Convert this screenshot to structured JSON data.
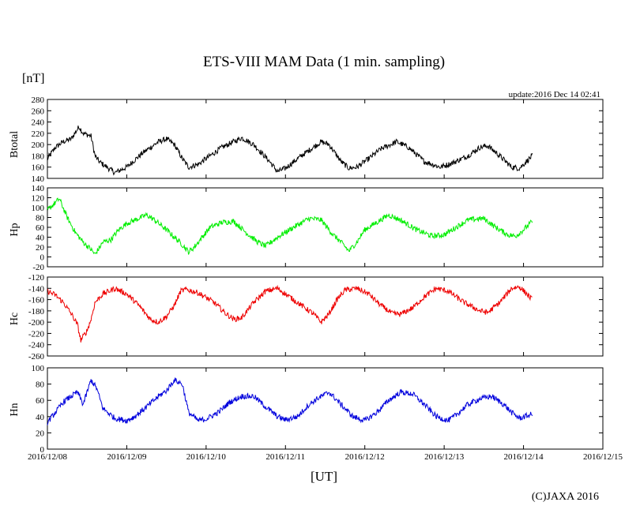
{
  "chart_data": {
    "type": "line",
    "title": "ETS-VIII MAM Data (1 min. sampling)",
    "unit_label": "[nT]",
    "update": "update:2016 Dec 14 02:41",
    "xlabel": "[UT]",
    "credit": "(C)JAXA 2016",
    "x_ticks": [
      "2016/12/08",
      "2016/12/09",
      "2016/12/10",
      "2016/12/11",
      "2016/12/12",
      "2016/12/13",
      "2016/12/14",
      "2016/12/15"
    ],
    "x_range_days": [
      0,
      7
    ],
    "data_end_day": 6.11,
    "panels": [
      {
        "id": "btotal",
        "label": "Btotal",
        "color": "#000000",
        "ylim": [
          140,
          280
        ],
        "yticks": [
          "140",
          "160",
          "180",
          "200",
          "220",
          "240",
          "260",
          "280"
        ],
        "points": [
          [
            0,
            175
          ],
          [
            0.1,
            195
          ],
          [
            0.2,
            205
          ],
          [
            0.3,
            210
          ],
          [
            0.4,
            232
          ],
          [
            0.45,
            220
          ],
          [
            0.55,
            215
          ],
          [
            0.6,
            180
          ],
          [
            0.65,
            170
          ],
          [
            0.75,
            160
          ],
          [
            0.85,
            150
          ],
          [
            1.0,
            160
          ],
          [
            1.2,
            185
          ],
          [
            1.4,
            205
          ],
          [
            1.5,
            210
          ],
          [
            1.6,
            200
          ],
          [
            1.7,
            175
          ],
          [
            1.78,
            160
          ],
          [
            1.9,
            165
          ],
          [
            2.0,
            175
          ],
          [
            2.2,
            195
          ],
          [
            2.45,
            212
          ],
          [
            2.6,
            200
          ],
          [
            2.8,
            170
          ],
          [
            2.9,
            152
          ],
          [
            3.0,
            158
          ],
          [
            3.2,
            180
          ],
          [
            3.45,
            205
          ],
          [
            3.55,
            200
          ],
          [
            3.7,
            170
          ],
          [
            3.8,
            158
          ],
          [
            3.9,
            160
          ],
          [
            4.05,
            175
          ],
          [
            4.2,
            192
          ],
          [
            4.4,
            205
          ],
          [
            4.55,
            195
          ],
          [
            4.75,
            170
          ],
          [
            4.95,
            160
          ],
          [
            5.1,
            167
          ],
          [
            5.3,
            180
          ],
          [
            5.45,
            195
          ],
          [
            5.55,
            198
          ],
          [
            5.7,
            180
          ],
          [
            5.85,
            160
          ],
          [
            5.95,
            158
          ],
          [
            6.11,
            180
          ]
        ]
      },
      {
        "id": "hp",
        "label": "Hp",
        "color": "#00ee00",
        "ylim": [
          -20,
          140
        ],
        "yticks": [
          "-20",
          "0",
          "20",
          "40",
          "60",
          "80",
          "100",
          "120",
          "140"
        ],
        "points": [
          [
            0,
            95
          ],
          [
            0.1,
            110
          ],
          [
            0.15,
            118
          ],
          [
            0.25,
            80
          ],
          [
            0.35,
            50
          ],
          [
            0.45,
            30
          ],
          [
            0.55,
            15
          ],
          [
            0.6,
            5
          ],
          [
            0.7,
            30
          ],
          [
            0.8,
            35
          ],
          [
            0.9,
            55
          ],
          [
            1.0,
            68
          ],
          [
            1.15,
            78
          ],
          [
            1.25,
            85
          ],
          [
            1.35,
            75
          ],
          [
            1.5,
            55
          ],
          [
            1.6,
            40
          ],
          [
            1.7,
            25
          ],
          [
            1.78,
            10
          ],
          [
            1.85,
            20
          ],
          [
            1.95,
            40
          ],
          [
            2.05,
            60
          ],
          [
            2.2,
            70
          ],
          [
            2.35,
            72
          ],
          [
            2.5,
            50
          ],
          [
            2.65,
            30
          ],
          [
            2.75,
            22
          ],
          [
            2.9,
            40
          ],
          [
            3.1,
            60
          ],
          [
            3.3,
            78
          ],
          [
            3.45,
            75
          ],
          [
            3.6,
            45
          ],
          [
            3.7,
            30
          ],
          [
            3.8,
            12
          ],
          [
            3.9,
            30
          ],
          [
            4.0,
            55
          ],
          [
            4.2,
            75
          ],
          [
            4.3,
            85
          ],
          [
            4.45,
            75
          ],
          [
            4.65,
            55
          ],
          [
            4.85,
            42
          ],
          [
            5.0,
            45
          ],
          [
            5.15,
            60
          ],
          [
            5.3,
            75
          ],
          [
            5.5,
            78
          ],
          [
            5.65,
            60
          ],
          [
            5.8,
            45
          ],
          [
            5.9,
            42
          ],
          [
            6.0,
            55
          ],
          [
            6.11,
            72
          ]
        ]
      },
      {
        "id": "hc",
        "label": "Hc",
        "color": "#ee0000",
        "ylim": [
          -260,
          -120
        ],
        "yticks": [
          "-260",
          "-240",
          "-220",
          "-200",
          "-180",
          "-160",
          "-140",
          "-120"
        ],
        "points": [
          [
            0,
            -145
          ],
          [
            0.1,
            -152
          ],
          [
            0.2,
            -165
          ],
          [
            0.3,
            -185
          ],
          [
            0.38,
            -205
          ],
          [
            0.42,
            -232
          ],
          [
            0.5,
            -215
          ],
          [
            0.55,
            -195
          ],
          [
            0.6,
            -165
          ],
          [
            0.7,
            -150
          ],
          [
            0.85,
            -140
          ],
          [
            1.0,
            -150
          ],
          [
            1.15,
            -170
          ],
          [
            1.3,
            -195
          ],
          [
            1.4,
            -200
          ],
          [
            1.5,
            -190
          ],
          [
            1.6,
            -170
          ],
          [
            1.68,
            -145
          ],
          [
            1.75,
            -142
          ],
          [
            1.9,
            -148
          ],
          [
            2.1,
            -165
          ],
          [
            2.25,
            -185
          ],
          [
            2.35,
            -195
          ],
          [
            2.45,
            -192
          ],
          [
            2.6,
            -165
          ],
          [
            2.75,
            -145
          ],
          [
            2.9,
            -140
          ],
          [
            3.05,
            -155
          ],
          [
            3.2,
            -170
          ],
          [
            3.35,
            -185
          ],
          [
            3.45,
            -200
          ],
          [
            3.55,
            -185
          ],
          [
            3.65,
            -160
          ],
          [
            3.75,
            -143
          ],
          [
            3.9,
            -140
          ],
          [
            4.05,
            -150
          ],
          [
            4.2,
            -170
          ],
          [
            4.35,
            -185
          ],
          [
            4.45,
            -186
          ],
          [
            4.6,
            -175
          ],
          [
            4.75,
            -155
          ],
          [
            4.9,
            -140
          ],
          [
            5.05,
            -145
          ],
          [
            5.25,
            -165
          ],
          [
            5.45,
            -180
          ],
          [
            5.55,
            -183
          ],
          [
            5.7,
            -165
          ],
          [
            5.85,
            -140
          ],
          [
            5.95,
            -137
          ],
          [
            6.11,
            -160
          ]
        ]
      },
      {
        "id": "hn",
        "label": "Hn",
        "color": "#0000dd",
        "ylim": [
          0,
          100
        ],
        "yticks": [
          "0",
          "20",
          "40",
          "60",
          "80",
          "100"
        ],
        "points": [
          [
            0,
            33
          ],
          [
            0.1,
            45
          ],
          [
            0.2,
            58
          ],
          [
            0.3,
            65
          ],
          [
            0.38,
            70
          ],
          [
            0.45,
            55
          ],
          [
            0.5,
            70
          ],
          [
            0.55,
            85
          ],
          [
            0.62,
            75
          ],
          [
            0.7,
            50
          ],
          [
            0.85,
            38
          ],
          [
            1.0,
            35
          ],
          [
            1.1,
            40
          ],
          [
            1.25,
            52
          ],
          [
            1.4,
            65
          ],
          [
            1.5,
            72
          ],
          [
            1.6,
            85
          ],
          [
            1.7,
            80
          ],
          [
            1.78,
            45
          ],
          [
            1.9,
            35
          ],
          [
            2.0,
            37
          ],
          [
            2.15,
            45
          ],
          [
            2.3,
            58
          ],
          [
            2.45,
            65
          ],
          [
            2.6,
            65
          ],
          [
            2.75,
            52
          ],
          [
            2.9,
            40
          ],
          [
            3.0,
            36
          ],
          [
            3.15,
            40
          ],
          [
            3.3,
            55
          ],
          [
            3.4,
            62
          ],
          [
            3.55,
            70
          ],
          [
            3.65,
            60
          ],
          [
            3.75,
            50
          ],
          [
            3.85,
            40
          ],
          [
            4.0,
            35
          ],
          [
            4.15,
            45
          ],
          [
            4.3,
            60
          ],
          [
            4.45,
            70
          ],
          [
            4.6,
            68
          ],
          [
            4.75,
            55
          ],
          [
            4.9,
            40
          ],
          [
            5.05,
            35
          ],
          [
            5.15,
            42
          ],
          [
            5.3,
            55
          ],
          [
            5.45,
            62
          ],
          [
            5.6,
            65
          ],
          [
            5.75,
            55
          ],
          [
            5.85,
            45
          ],
          [
            5.95,
            38
          ],
          [
            6.11,
            43
          ]
        ]
      }
    ]
  }
}
